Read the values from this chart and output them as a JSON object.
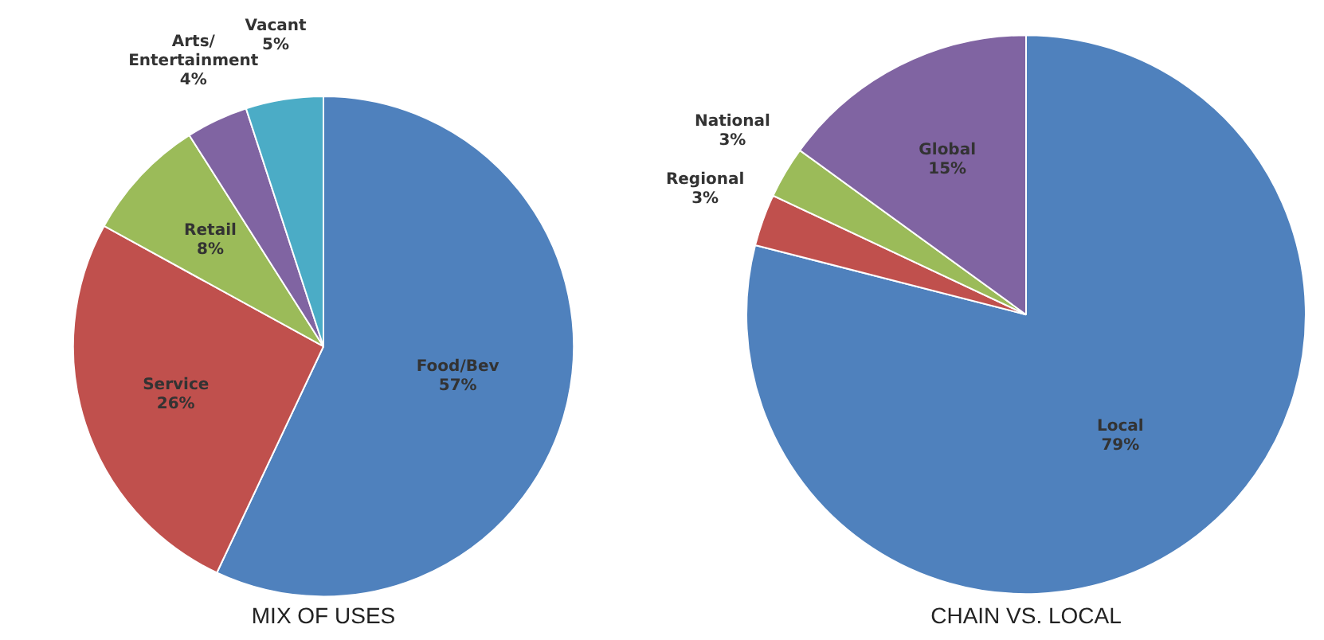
{
  "chart_data": [
    {
      "type": "pie",
      "title": "MIX OF USES",
      "categories": [
        "Food/Bev",
        "Service",
        "Retail",
        "Arts/Entertainment",
        "Vacant"
      ],
      "values": [
        57,
        26,
        8,
        4,
        5
      ],
      "value_labels": [
        "57%",
        "26%",
        "8%",
        "4%",
        "5%"
      ],
      "colors": [
        "#4f81bd",
        "#c0504d",
        "#9bbb59",
        "#8064a2",
        "#4bacc6"
      ],
      "legend": false
    },
    {
      "type": "pie",
      "title": "CHAIN VS. LOCAL",
      "categories": [
        "Local",
        "Regional",
        "National",
        "Global"
      ],
      "values": [
        79,
        3,
        3,
        15
      ],
      "value_labels": [
        "79%",
        "3%",
        "3%",
        "15%"
      ],
      "colors": [
        "#4f81bd",
        "#c0504d",
        "#9bbb59",
        "#8064a2"
      ],
      "legend": false
    }
  ]
}
